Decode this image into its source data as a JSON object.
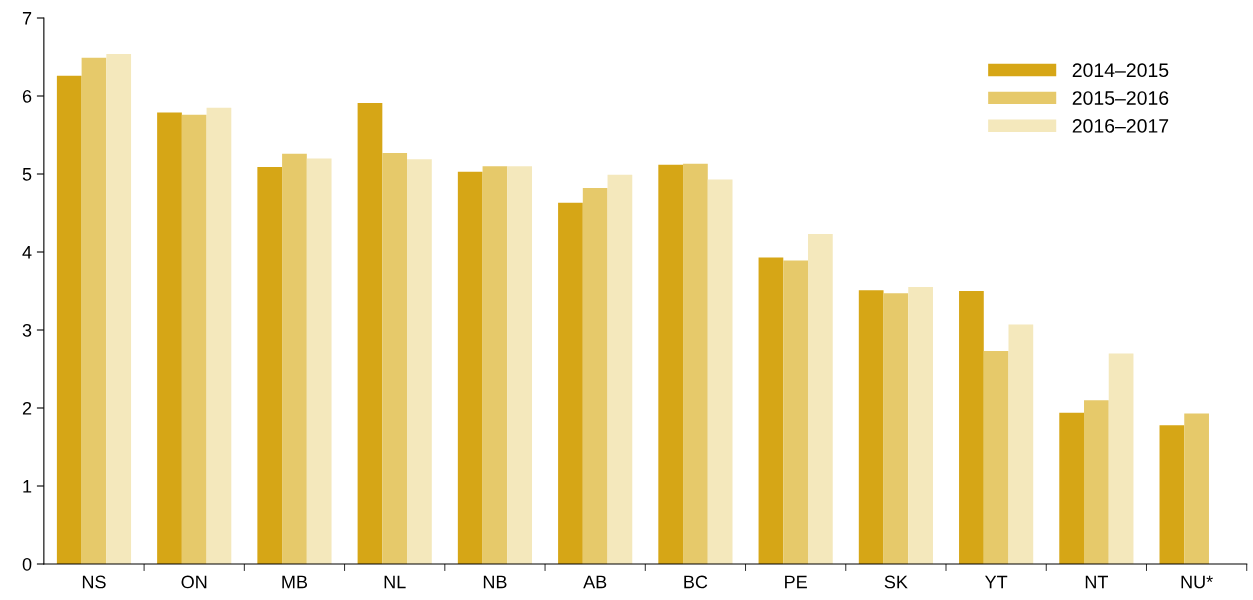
{
  "chart_data": {
    "type": "bar",
    "categories": [
      "NS",
      "ON",
      "MB",
      "NL",
      "NB",
      "AB",
      "BC",
      "PE",
      "SK",
      "YT",
      "NT",
      "NU*"
    ],
    "series": [
      {
        "name": "2014–2015",
        "color": "#d6a616",
        "values": [
          6.26,
          5.79,
          5.09,
          5.91,
          5.03,
          4.63,
          5.12,
          3.93,
          3.51,
          3.5,
          1.94,
          1.78
        ]
      },
      {
        "name": "2015–2016",
        "color": "#e6c96a",
        "values": [
          6.49,
          5.76,
          5.26,
          5.27,
          5.1,
          4.82,
          5.13,
          3.89,
          3.47,
          2.73,
          2.1,
          1.93
        ]
      },
      {
        "name": "2016–2017",
        "color": "#f4e8bc",
        "values": [
          6.54,
          5.85,
          5.2,
          5.19,
          5.1,
          4.99,
          4.93,
          4.23,
          3.55,
          3.07,
          2.7,
          null
        ]
      }
    ],
    "ylim": [
      0,
      7
    ],
    "yticks": [
      0,
      1,
      2,
      3,
      4,
      5,
      6,
      7
    ],
    "grid": false,
    "legend": "top right"
  }
}
